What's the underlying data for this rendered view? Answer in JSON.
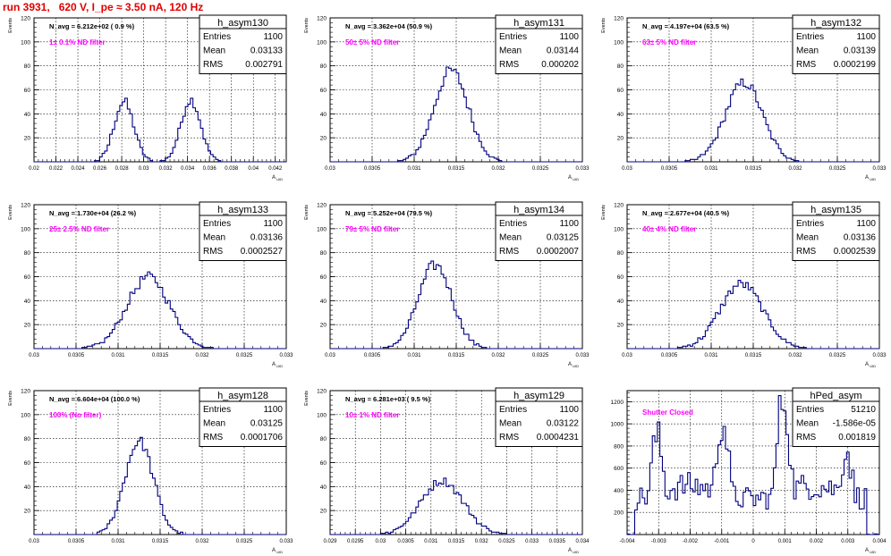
{
  "header": {
    "title": "run 3931,   620 V, I_pe ≈ 3.50 nA, 120 Hz",
    "title_color": "#e00000"
  },
  "colors": {
    "hist_line": "#000080",
    "annotation": "#ff00ff",
    "grid": "#000000"
  },
  "chart_data": [
    {
      "type": "bar",
      "title": "h_asym130",
      "xlabel": "A_UID",
      "ylabel": "Events",
      "ylim": [
        0,
        120
      ],
      "yticks": [
        20,
        40,
        60,
        80,
        100,
        120
      ],
      "xlim": [
        0.02,
        0.043
      ],
      "xticks": [
        "0.02",
        "0.022",
        "0.024",
        "0.026",
        "0.028",
        "0.03",
        "0.032",
        "0.034",
        "0.036",
        "0.038",
        "0.04",
        "0.042"
      ],
      "grid": true,
      "navg": "N_avg = 6.212e+02 ( 0.9 %)",
      "filter": "1± 0.1% ND filter",
      "stats": [
        [
          "Entries",
          "1100"
        ],
        [
          "Mean",
          "0.03133"
        ],
        [
          "RMS",
          "0.002791"
        ]
      ],
      "peaks": [
        {
          "mu": 0.0282,
          "sigma": 0.0009,
          "amp": 50
        },
        {
          "mu": 0.0343,
          "sigma": 0.0009,
          "amp": 52
        }
      ]
    },
    {
      "type": "bar",
      "title": "h_asym131",
      "xlabel": "A_UID",
      "ylabel": "Events",
      "ylim": [
        0,
        120
      ],
      "yticks": [
        20,
        40,
        60,
        80,
        100,
        120
      ],
      "xlim": [
        0.03,
        0.033
      ],
      "xticks": [
        "0.03",
        "0.0305",
        "0.031",
        "0.0315",
        "0.032",
        "0.0325",
        "0.033"
      ],
      "grid": true,
      "navg": "N_avg = 3.362e+04 (50.9 %)",
      "filter": "50± 5% ND filter",
      "stats": [
        [
          "Entries",
          "1100"
        ],
        [
          "Mean",
          "0.03144"
        ],
        [
          "RMS",
          "0.000202"
        ]
      ],
      "peaks": [
        {
          "mu": 0.03144,
          "sigma": 0.000202,
          "amp": 76
        }
      ]
    },
    {
      "type": "bar",
      "title": "h_asym132",
      "xlabel": "A_UID",
      "ylabel": "Events",
      "ylim": [
        0,
        120
      ],
      "yticks": [
        20,
        40,
        60,
        80,
        100,
        120
      ],
      "xlim": [
        0.03,
        0.033
      ],
      "xticks": [
        "0.03",
        "0.0305",
        "0.031",
        "0.0315",
        "0.032",
        "0.0325",
        "0.033"
      ],
      "grid": true,
      "navg": "N_avg = 4.197e+04 (63.5 %)",
      "filter": "63± 5% ND filter",
      "stats": [
        [
          "Entries",
          "1100"
        ],
        [
          "Mean",
          "0.03139"
        ],
        [
          "RMS",
          "0.0002199"
        ]
      ],
      "peaks": [
        {
          "mu": 0.03139,
          "sigma": 0.00022,
          "amp": 66
        }
      ]
    },
    {
      "type": "bar",
      "title": "h_asym133",
      "xlabel": "A_UID",
      "ylabel": "Events",
      "ylim": [
        0,
        120
      ],
      "yticks": [
        20,
        40,
        60,
        80,
        100,
        120
      ],
      "xlim": [
        0.03,
        0.033
      ],
      "xticks": [
        "0.03",
        "0.0305",
        "0.031",
        "0.0315",
        "0.032",
        "0.0325",
        "0.033"
      ],
      "grid": true,
      "navg": "N_avg = 1.730e+04 (26.2 %)",
      "filter": "25± 2.5% ND filter",
      "stats": [
        [
          "Entries",
          "1100"
        ],
        [
          "Mean",
          "0.03136"
        ],
        [
          "RMS",
          "0.0002527"
        ]
      ],
      "peaks": [
        {
          "mu": 0.03136,
          "sigma": 0.000253,
          "amp": 60
        }
      ]
    },
    {
      "type": "bar",
      "title": "h_asym134",
      "xlabel": "A_UID",
      "ylabel": "Events",
      "ylim": [
        0,
        120
      ],
      "yticks": [
        20,
        40,
        60,
        80,
        100,
        120
      ],
      "xlim": [
        0.03,
        0.033
      ],
      "xticks": [
        "0.03",
        "0.0305",
        "0.031",
        "0.0315",
        "0.032",
        "0.0325",
        "0.033"
      ],
      "grid": true,
      "navg": "N_avg = 5.252e+04 (79.5 %)",
      "filter": "79± 5% ND filter",
      "stats": [
        [
          "Entries",
          "1100"
        ],
        [
          "Mean",
          "0.03125"
        ],
        [
          "RMS",
          "0.0002007"
        ]
      ],
      "peaks": [
        {
          "mu": 0.03125,
          "sigma": 0.0002,
          "amp": 70
        }
      ]
    },
    {
      "type": "bar",
      "title": "h_asym135",
      "xlabel": "A_UID",
      "ylabel": "Events",
      "ylim": [
        0,
        120
      ],
      "yticks": [
        20,
        40,
        60,
        80,
        100,
        120
      ],
      "xlim": [
        0.03,
        0.033
      ],
      "xticks": [
        "0.03",
        "0.0305",
        "0.031",
        "0.0315",
        "0.032",
        "0.0325",
        "0.033"
      ],
      "grid": true,
      "navg": "N_avg = 2.677e+04 (40.5 %)",
      "filter": "40± 4% ND filter",
      "stats": [
        [
          "Entries",
          "1100"
        ],
        [
          "Mean",
          "0.03136"
        ],
        [
          "RMS",
          "0.0002539"
        ]
      ],
      "peaks": [
        {
          "mu": 0.03136,
          "sigma": 0.000254,
          "amp": 54
        }
      ]
    },
    {
      "type": "bar",
      "title": "h_asym128",
      "xlabel": "A_UID",
      "ylabel": "Events",
      "ylim": [
        0,
        120
      ],
      "yticks": [
        20,
        40,
        60,
        80,
        100,
        120
      ],
      "xlim": [
        0.03,
        0.033
      ],
      "xticks": [
        "0.03",
        "0.0305",
        "0.031",
        "0.0315",
        "0.032",
        "0.0325",
        "0.033"
      ],
      "grid": true,
      "navg": "N_avg = 6.604e+04 (100.0 %)",
      "filter": "100% (No filter)",
      "stats": [
        [
          "Entries",
          "1100"
        ],
        [
          "Mean",
          "0.03125"
        ],
        [
          "RMS",
          "0.0001706"
        ]
      ],
      "peaks": [
        {
          "mu": 0.03125,
          "sigma": 0.00017,
          "amp": 78
        }
      ]
    },
    {
      "type": "bar",
      "title": "h_asym129",
      "xlabel": "A_UID",
      "ylabel": "Events",
      "ylim": [
        0,
        120
      ],
      "yticks": [
        20,
        40,
        60,
        80,
        100,
        120
      ],
      "xlim": [
        0.029,
        0.034
      ],
      "xticks": [
        "0.029",
        "0.0295",
        "0.03",
        "0.0305",
        "0.031",
        "0.0315",
        "0.032",
        "0.0325",
        "0.033",
        "0.0335",
        "0.034"
      ],
      "grid": true,
      "navg": "N_avg = 6.281e+03 ( 9.5 %)",
      "filter": "10± 1% ND filter",
      "stats": [
        [
          "Entries",
          "1100"
        ],
        [
          "Mean",
          "0.03122"
        ],
        [
          "RMS",
          "0.0004231"
        ]
      ],
      "peaks": [
        {
          "mu": 0.03122,
          "sigma": 0.00042,
          "amp": 45
        }
      ]
    },
    {
      "type": "bar",
      "title": "hPed_asym",
      "xlabel": "A_UID",
      "ylabel": "",
      "ylim": [
        0,
        1300
      ],
      "yticks": [
        200,
        400,
        600,
        800,
        1000,
        1200
      ],
      "xlim": [
        -0.004,
        0.004
      ],
      "xticks": [
        "-0.004",
        "-0.003",
        "-0.002",
        "-0.001",
        "0",
        "0.001",
        "0.002",
        "0.003",
        "0.004"
      ],
      "grid": true,
      "navg": "",
      "filter": "Shutter Closed",
      "stats": [
        [
          "Entries",
          "51210"
        ],
        [
          "Mean",
          "-1.586e-05"
        ],
        [
          "RMS",
          "0.001819"
        ]
      ],
      "peaks": [
        {
          "mu": -0.00305,
          "sigma": 0.00022,
          "amp": 880
        },
        {
          "mu": -0.00098,
          "sigma": 0.00022,
          "amp": 1030
        },
        {
          "mu": 0.00095,
          "sigma": 0.00022,
          "amp": 1230
        },
        {
          "mu": 0.00295,
          "sigma": 0.00022,
          "amp": 760
        }
      ]
    }
  ]
}
